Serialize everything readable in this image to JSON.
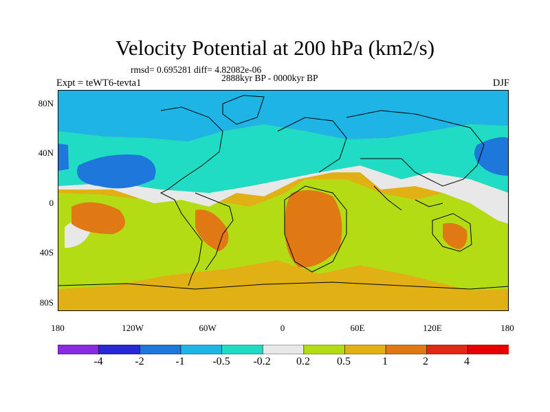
{
  "figure": {
    "title": "Velocity Potential at 200 hPa (km2/s)",
    "stats": "rmsd= 0.695281  diff= 4.82082e-06",
    "period": "2888kyr BP - 0000kyr BP",
    "expt": "Expt = teWT6-tevta1",
    "season": "DJF"
  },
  "map": {
    "projection": "cylindrical equidistant",
    "lon_range": [
      -180,
      180
    ],
    "lat_range": [
      -90,
      90
    ],
    "x_ticks": [
      "180",
      "120W",
      "60W",
      "0",
      "60E",
      "120E",
      "180"
    ],
    "y_ticks": [
      "80N",
      "40N",
      "0",
      "40S",
      "80S"
    ]
  },
  "colorbar": {
    "labels": [
      "-4",
      "-2",
      "-1",
      "-0.5",
      "-0.2",
      "0.2",
      "0.5",
      "1",
      "2",
      "4"
    ],
    "colors": [
      "#8a2be2",
      "#2828d6",
      "#1e78dc",
      "#1eb4e6",
      "#20dcc4",
      "#e8e8e8",
      "#b4dc14",
      "#e0b014",
      "#e07814",
      "#e02814",
      "#e80000"
    ]
  },
  "chart_data": {
    "type": "heatmap",
    "title": "Velocity Potential at 200 hPa (km2/s)",
    "xlabel": "",
    "ylabel": "",
    "levels": [
      -4,
      -2,
      -1,
      -0.5,
      -0.2,
      0.2,
      0.5,
      1,
      2,
      4
    ],
    "regions": [
      {
        "name": "north-polar band",
        "value_range": [
          -1,
          -0.5
        ]
      },
      {
        "name": "north-pacific low",
        "value_range": [
          -2,
          -1
        ]
      },
      {
        "name": "west-pacific low",
        "value_range": [
          -2,
          -1
        ]
      },
      {
        "name": "south-atlantic/indian high",
        "value_range": [
          0.5,
          1
        ]
      },
      {
        "name": "southern africa peak",
        "value_range": [
          1,
          2
        ]
      },
      {
        "name": "south america peak",
        "value_range": [
          1,
          2
        ]
      },
      {
        "name": "australia peak",
        "value_range": [
          1,
          2
        ]
      },
      {
        "name": "south pacific peak",
        "value_range": [
          1,
          2
        ]
      }
    ]
  }
}
